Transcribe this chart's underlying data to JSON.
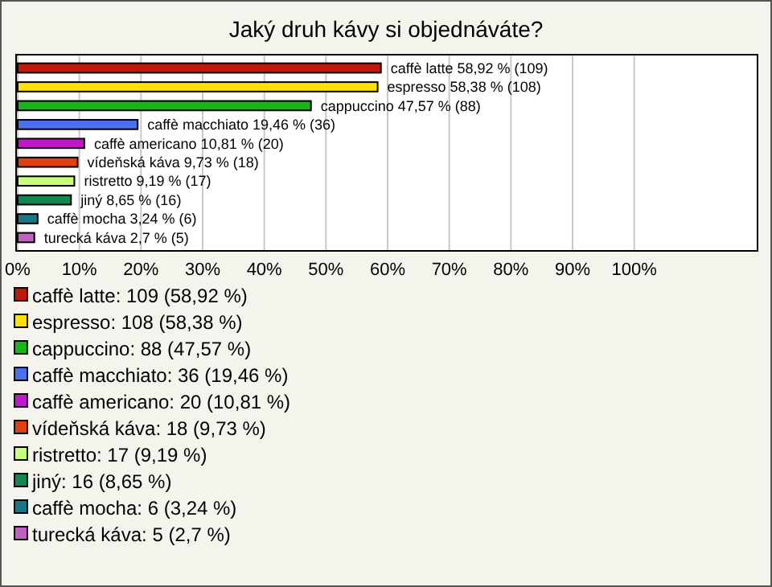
{
  "chart_data": {
    "type": "bar",
    "orientation": "horizontal",
    "title": "Jaký druh kávy si objednáváte?",
    "categories": [
      null,
      null,
      null,
      null,
      null,
      null,
      null,
      null,
      null,
      null
    ],
    "values": [
      58.92,
      58.38,
      47.57,
      19.46,
      10.81,
      9.73,
      9.19,
      8.65,
      3.24,
      2.7
    ],
    "colors": [
      "#c0180c",
      "#ffe000",
      "#18b418",
      "#4a70f0",
      "#c018c8",
      "#e04010",
      "#c8ff78",
      "#108850",
      "#187888",
      "#c060c0"
    ],
    "value_labels": [
      "caffè latte 58,92 % (109)",
      "espresso 58,38 % (108)",
      "cappuccino 47,57 % (88)",
      "caffè macchiato 19,46 % (36)",
      "caffè americano 10,81 % (20)",
      "vídeňská káva 9,73 % (18)",
      "ristretto 9,19 % (17)",
      "jiný 8,65 % (16)",
      "caffè mocha 3,24 % (6)",
      "turecká káva 2,7 % (5)"
    ],
    "annotations": [
      "caffè latte: 109 (58,92 %)",
      "espresso: 108 (58,38 %)",
      "cappuccino: 88 (47,57 %)",
      "caffè macchiato: 36 (19,46 %)",
      "caffè americano: 20 (10,81 %)",
      "vídeňská káva: 18 (9,73 %)",
      "ristretto: 17 (9,19 %)",
      "jiný: 16 (8,65 %)",
      "caffè mocha: 6 (3,24 %)",
      "turecká káva: 5 (2,7 %)"
    ],
    "xlim": [
      0,
      120
    ],
    "xticks": [
      {
        "value": 0,
        "label": "0%"
      },
      {
        "value": 10,
        "label": "10%"
      },
      {
        "value": 20,
        "label": "20%"
      },
      {
        "value": 30,
        "label": "30%"
      },
      {
        "value": 40,
        "label": "40%"
      },
      {
        "value": 50,
        "label": "50%"
      },
      {
        "value": 60,
        "label": "60%"
      },
      {
        "value": 70,
        "label": "70%"
      },
      {
        "value": 80,
        "label": "80%"
      },
      {
        "value": 90,
        "label": "90%"
      },
      {
        "value": 100,
        "label": "100%"
      }
    ],
    "grid": "x"
  }
}
